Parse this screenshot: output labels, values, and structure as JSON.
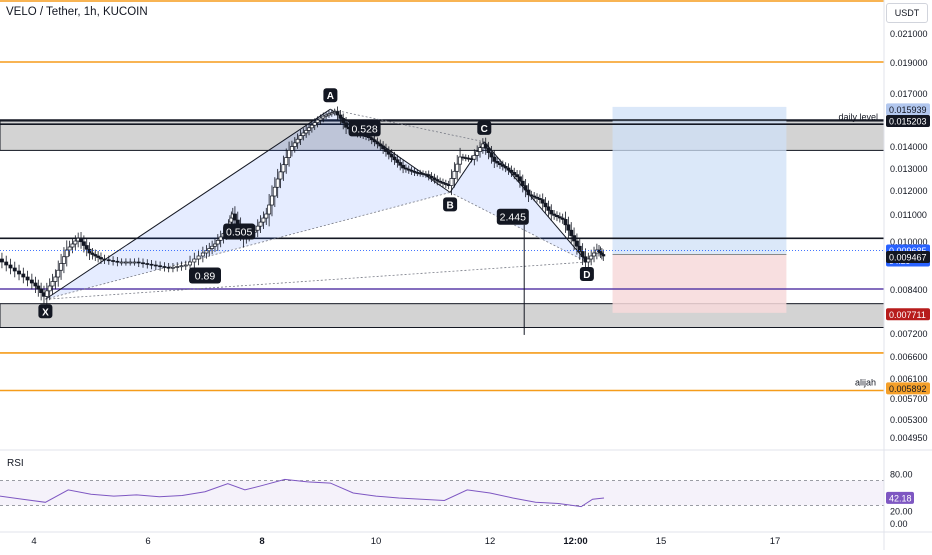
{
  "header": {
    "title": "VELO / Tether, 1h, KUCOIN",
    "currency_button": "USDT"
  },
  "rsi_panel": {
    "label": "RSI",
    "value": "42.18",
    "ticks": [
      "80.00",
      "20.00",
      "0.00"
    ],
    "band_upper": 70,
    "band_lower": 30
  },
  "x_axis": {
    "ticks": [
      "4",
      "6",
      "8",
      "10",
      "12",
      "12:00",
      "15",
      "17"
    ],
    "bold_ticks": [
      "8",
      "12:00"
    ]
  },
  "price_axis": {
    "ticks": [
      "0.021000",
      "0.019000",
      "0.017000",
      "0.014000",
      "0.013000",
      "0.012000",
      "0.011000",
      "0.010000",
      "0.008400",
      "0.007200",
      "0.006600",
      "0.006100",
      "0.005700",
      "0.005300",
      "0.004950"
    ],
    "badges": [
      {
        "value": "0.015939",
        "color": "#b2c7ee",
        "text_color": "#131722"
      },
      {
        "value": "0.015203",
        "color": "#131722",
        "text_color": "#ffffff"
      },
      {
        "value": "0.009685",
        "color": "#2962ff",
        "text_color": "#ffffff",
        "sub": "04:20"
      },
      {
        "value": "0.009467",
        "color": "#131722",
        "text_color": "#ffffff"
      },
      {
        "value": "0.007711",
        "color": "#b71c1c",
        "text_color": "#ffffff"
      },
      {
        "value": "0.005892",
        "color": "#f5a02a",
        "text_color": "#131722"
      }
    ]
  },
  "annotations": {
    "daily_level": "daily level",
    "alijah": "alijah"
  },
  "pattern": {
    "points": [
      {
        "label": "X",
        "time": "4.2",
        "price": 0.00812
      },
      {
        "label": "A",
        "time": "9.2",
        "price": 0.01595
      },
      {
        "label": "B",
        "time": "11.3",
        "price": 0.0119
      },
      {
        "label": "C",
        "time": "11.9",
        "price": 0.0142
      },
      {
        "label": "D",
        "time": "13.7",
        "price": 0.0093
      }
    ],
    "ratios": [
      "0.528",
      "0.505",
      "2.445",
      "0.89"
    ]
  },
  "chart_data": {
    "type": "candlestick",
    "title": "VELO / Tether, 1h, KUCOIN",
    "x_range": [
      "4",
      "17"
    ],
    "y_range": [
      0.0047,
      0.0215
    ],
    "horizontal_levels": [
      {
        "price": 0.0215,
        "color": "#f59c1a"
      },
      {
        "price": 0.019,
        "color": "#f59c1a"
      },
      {
        "price": 0.01525,
        "color": "#131722"
      },
      {
        "price": 0.01505,
        "color": "#131722"
      },
      {
        "price": 0.0101,
        "color": "#131722"
      },
      {
        "price": 0.0084,
        "color": "#5b3ea8"
      },
      {
        "price": 0.00668,
        "color": "#f59c1a"
      },
      {
        "price": 0.00585,
        "color": "#f59c1a"
      }
    ],
    "zones": [
      {
        "from": 0.0138,
        "to": 0.0152
      },
      {
        "from": 0.00735,
        "to": 0.008
      }
    ],
    "position": {
      "entry": 0.00955,
      "target": 0.0161,
      "stop": 0.00775
    },
    "price_series": [
      {
        "t": 3.4,
        "p": 0.0094
      },
      {
        "t": 3.7,
        "p": 0.009
      },
      {
        "t": 4.0,
        "p": 0.0086
      },
      {
        "t": 4.2,
        "p": 0.0082
      },
      {
        "t": 4.4,
        "p": 0.0088
      },
      {
        "t": 4.6,
        "p": 0.0097
      },
      {
        "t": 4.8,
        "p": 0.0101
      },
      {
        "t": 5.0,
        "p": 0.0096
      },
      {
        "t": 5.2,
        "p": 0.0094
      },
      {
        "t": 5.5,
        "p": 0.0093
      },
      {
        "t": 5.8,
        "p": 0.0093
      },
      {
        "t": 6.1,
        "p": 0.0092
      },
      {
        "t": 6.4,
        "p": 0.0091
      },
      {
        "t": 6.7,
        "p": 0.0092
      },
      {
        "t": 7.0,
        "p": 0.0096
      },
      {
        "t": 7.2,
        "p": 0.0099
      },
      {
        "t": 7.4,
        "p": 0.0104
      },
      {
        "t": 7.5,
        "p": 0.011
      },
      {
        "t": 7.7,
        "p": 0.0101
      },
      {
        "t": 7.9,
        "p": 0.0104
      },
      {
        "t": 8.1,
        "p": 0.011
      },
      {
        "t": 8.3,
        "p": 0.0125
      },
      {
        "t": 8.5,
        "p": 0.0138
      },
      {
        "t": 8.7,
        "p": 0.0145
      },
      {
        "t": 8.9,
        "p": 0.015
      },
      {
        "t": 9.1,
        "p": 0.0155
      },
      {
        "t": 9.3,
        "p": 0.0158
      },
      {
        "t": 9.5,
        "p": 0.0149
      },
      {
        "t": 9.7,
        "p": 0.0146
      },
      {
        "t": 9.9,
        "p": 0.0144
      },
      {
        "t": 10.1,
        "p": 0.014
      },
      {
        "t": 10.3,
        "p": 0.0135
      },
      {
        "t": 10.5,
        "p": 0.013
      },
      {
        "t": 10.7,
        "p": 0.0128
      },
      {
        "t": 10.9,
        "p": 0.0127
      },
      {
        "t": 11.1,
        "p": 0.0124
      },
      {
        "t": 11.3,
        "p": 0.0122
      },
      {
        "t": 11.5,
        "p": 0.0135
      },
      {
        "t": 11.7,
        "p": 0.0134
      },
      {
        "t": 11.9,
        "p": 0.0141
      },
      {
        "t": 12.1,
        "p": 0.0133
      },
      {
        "t": 12.3,
        "p": 0.013
      },
      {
        "t": 12.5,
        "p": 0.0126
      },
      {
        "t": 12.7,
        "p": 0.0118
      },
      {
        "t": 12.9,
        "p": 0.0116
      },
      {
        "t": 13.1,
        "p": 0.011
      },
      {
        "t": 13.3,
        "p": 0.0108
      },
      {
        "t": 13.5,
        "p": 0.01
      },
      {
        "t": 13.7,
        "p": 0.0093
      },
      {
        "t": 13.9,
        "p": 0.0097
      },
      {
        "t": 14.0,
        "p": 0.0095
      }
    ],
    "rsi_series": [
      {
        "t": 3.4,
        "v": 45
      },
      {
        "t": 3.8,
        "v": 40
      },
      {
        "t": 4.2,
        "v": 35
      },
      {
        "t": 4.6,
        "v": 55
      },
      {
        "t": 5.0,
        "v": 48
      },
      {
        "t": 5.4,
        "v": 45
      },
      {
        "t": 5.8,
        "v": 47
      },
      {
        "t": 6.2,
        "v": 44
      },
      {
        "t": 6.6,
        "v": 46
      },
      {
        "t": 7.0,
        "v": 52
      },
      {
        "t": 7.4,
        "v": 65
      },
      {
        "t": 7.7,
        "v": 55
      },
      {
        "t": 8.0,
        "v": 62
      },
      {
        "t": 8.4,
        "v": 72
      },
      {
        "t": 8.8,
        "v": 68
      },
      {
        "t": 9.2,
        "v": 66
      },
      {
        "t": 9.6,
        "v": 50
      },
      {
        "t": 10.0,
        "v": 45
      },
      {
        "t": 10.4,
        "v": 42
      },
      {
        "t": 10.8,
        "v": 40
      },
      {
        "t": 11.2,
        "v": 38
      },
      {
        "t": 11.6,
        "v": 55
      },
      {
        "t": 12.0,
        "v": 50
      },
      {
        "t": 12.4,
        "v": 42
      },
      {
        "t": 12.8,
        "v": 35
      },
      {
        "t": 13.2,
        "v": 33
      },
      {
        "t": 13.6,
        "v": 28
      },
      {
        "t": 13.8,
        "v": 40
      },
      {
        "t": 14.0,
        "v": 42
      }
    ]
  },
  "colors": {
    "orange_level": "#f59c1a",
    "purple_level": "#5b3ea8",
    "zone_fill": "#9e9e9e",
    "pattern_fill": "#2962ff",
    "profit_fill": "#cfe0f7",
    "loss_fill": "#f7d9db",
    "candle": "#131722"
  }
}
